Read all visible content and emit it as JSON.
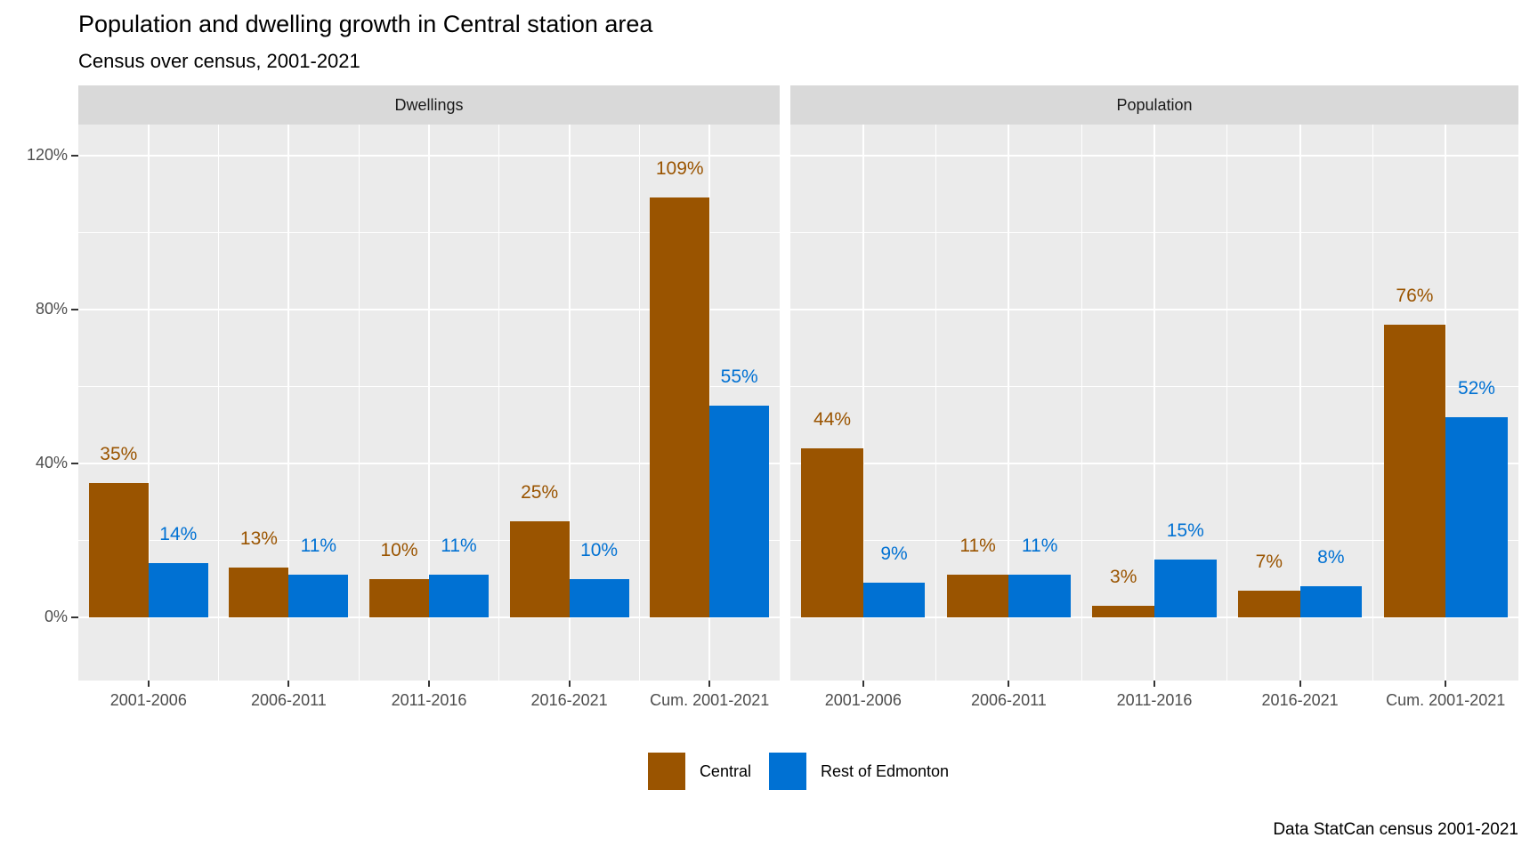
{
  "title": "Population and dwelling growth in Central station area",
  "subtitle": "Census over census, 2001-2021",
  "caption": "Data StatCan census 2001-2021",
  "colors": {
    "central": "#9A5400",
    "rest_of_edmonton": "#0071D3",
    "panel_background": "#EBEBEB",
    "strip_background": "#D9D9D9",
    "gridline": "#FFFFFF",
    "axis_text": "#4D4D4D",
    "tick_mark": "#333333"
  },
  "legend": {
    "items": [
      {
        "label": "Central",
        "color": "#9A5400"
      },
      {
        "label": "Rest of Edmonton",
        "color": "#0071D3"
      }
    ]
  },
  "chart_data": {
    "type": "bar",
    "layout_hint": "two facets side by side, dodged bars, grid on, legend bottom-center",
    "categories": [
      "2001-2006",
      "2006-2011",
      "2011-2016",
      "2016-2021",
      "Cum. 2001-2021"
    ],
    "y_axis": {
      "ticks": [
        {
          "value": 0,
          "label": "0%"
        },
        {
          "value": 40,
          "label": "40%"
        },
        {
          "value": 80,
          "label": "80%"
        },
        {
          "value": 120,
          "label": "120%"
        }
      ],
      "minor_ticks": [
        20,
        60,
        100
      ],
      "ylim": [
        -16.4,
        128
      ]
    },
    "value_suffix": "%",
    "facets": [
      {
        "label": "Dwellings",
        "series": [
          {
            "name": "Central",
            "color": "#9A5400",
            "values": [
              35,
              13,
              10,
              25,
              109
            ]
          },
          {
            "name": "Rest of Edmonton",
            "color": "#0071D3",
            "values": [
              14,
              11,
              11,
              10,
              55
            ]
          }
        ]
      },
      {
        "label": "Population",
        "series": [
          {
            "name": "Central",
            "color": "#9A5400",
            "values": [
              44,
              11,
              3,
              7,
              76
            ]
          },
          {
            "name": "Rest of Edmonton",
            "color": "#0071D3",
            "values": [
              9,
              11,
              15,
              8,
              52
            ]
          }
        ]
      }
    ]
  }
}
